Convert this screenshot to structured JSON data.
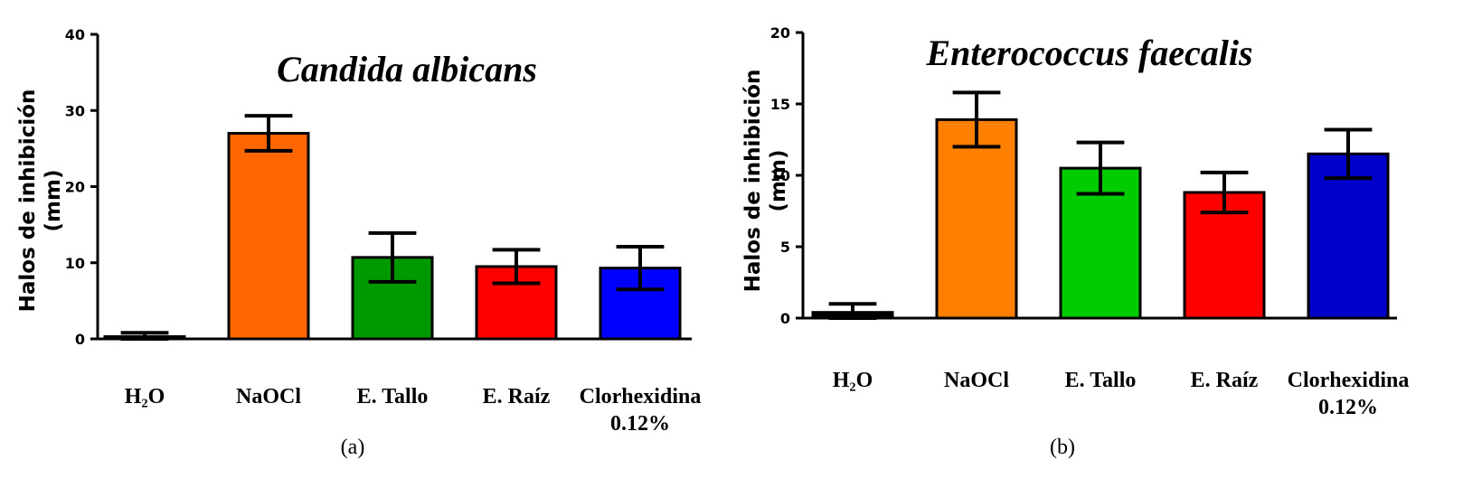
{
  "chart_data": [
    {
      "type": "bar",
      "title": "Candida albicans",
      "ylabel_line1": "Halos de inhibición",
      "ylabel_line2": "(mm)",
      "ylim": [
        0,
        40
      ],
      "yticks": [
        "0",
        "10",
        "20",
        "30",
        "40"
      ],
      "categories": [
        "H₂O",
        "NaOCl",
        "E. Tallo",
        "E. Raíz",
        "Clorhexidina 0.12%"
      ],
      "values": [
        0.3,
        27.0,
        10.7,
        9.5,
        9.3
      ],
      "error": [
        0.5,
        2.3,
        3.2,
        2.2,
        2.8
      ],
      "colors": [
        "#000000",
        "#ff6600",
        "#009900",
        "#ff0000",
        "#0000ff"
      ],
      "panel_label": "(a)"
    },
    {
      "type": "bar",
      "title": "Enterococcus faecalis",
      "ylabel_line1": "Halos de inhibición",
      "ylabel_line2": "(mm)",
      "ylim": [
        0,
        20
      ],
      "yticks": [
        "0",
        "5",
        "10",
        "15",
        "20"
      ],
      "categories": [
        "H₂O",
        "NaOCl",
        "E. Tallo",
        "E. Raíz",
        "Clorhexidina 0.12%"
      ],
      "values": [
        0.4,
        13.9,
        10.5,
        8.8,
        11.5
      ],
      "error": [
        0.6,
        1.9,
        1.8,
        1.4,
        1.7
      ],
      "colors": [
        "#000000",
        "#ff8000",
        "#00cc00",
        "#ff0000",
        "#0000cc"
      ],
      "panel_label": "(b)"
    }
  ]
}
